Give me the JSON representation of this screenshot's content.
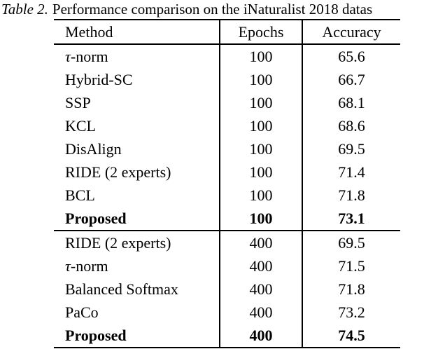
{
  "caption": {
    "label": "Table 2.",
    "text": "Performance comparison on the iNaturalist 2018 datas"
  },
  "colors": {
    "background": "#ffffff",
    "text": "#000000",
    "rule": "#000000"
  },
  "chart_data": {
    "type": "table",
    "columns": [
      "Method",
      "Epochs",
      "Accuracy"
    ],
    "groups": [
      {
        "rows": [
          {
            "method": "τ-norm",
            "epochs": "100",
            "accuracy": "65.6",
            "bold": false
          },
          {
            "method": "Hybrid-SC",
            "epochs": "100",
            "accuracy": "66.7",
            "bold": false
          },
          {
            "method": "SSP",
            "epochs": "100",
            "accuracy": "68.1",
            "bold": false
          },
          {
            "method": "KCL",
            "epochs": "100",
            "accuracy": "68.6",
            "bold": false
          },
          {
            "method": "DisAlign",
            "epochs": "100",
            "accuracy": "69.5",
            "bold": false
          },
          {
            "method": "RIDE (2 experts)",
            "epochs": "100",
            "accuracy": "71.4",
            "bold": false
          },
          {
            "method": "BCL",
            "epochs": "100",
            "accuracy": "71.8",
            "bold": false
          },
          {
            "method": "Proposed",
            "epochs": "100",
            "accuracy": "73.1",
            "bold": true
          }
        ]
      },
      {
        "rows": [
          {
            "method": "RIDE (2 experts)",
            "epochs": "400",
            "accuracy": "69.5",
            "bold": false
          },
          {
            "method": "τ-norm",
            "epochs": "400",
            "accuracy": "71.5",
            "bold": false
          },
          {
            "method": "Balanced Softmax",
            "epochs": "400",
            "accuracy": "71.8",
            "bold": false
          },
          {
            "method": "PaCo",
            "epochs": "400",
            "accuracy": "73.2",
            "bold": false
          },
          {
            "method": "Proposed",
            "epochs": "400",
            "accuracy": "74.5",
            "bold": true
          }
        ]
      }
    ]
  }
}
